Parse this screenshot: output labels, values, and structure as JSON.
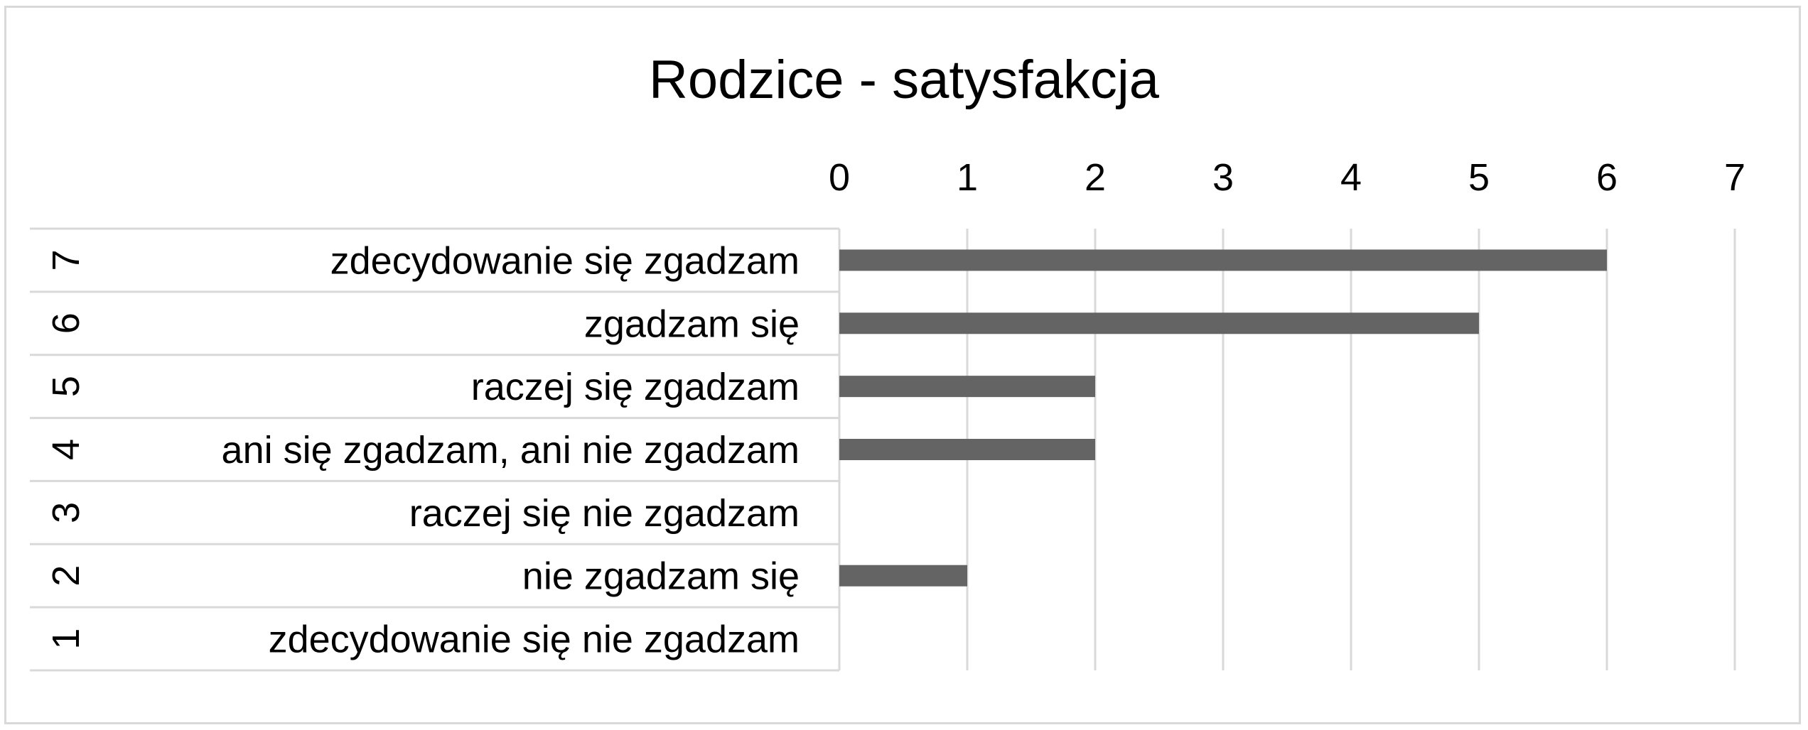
{
  "chart_data": {
    "type": "bar",
    "orientation": "horizontal",
    "title": "Rodzice - satysfakcja",
    "categories": [
      {
        "code": "7",
        "label": "zdecydowanie się zgadzam"
      },
      {
        "code": "6",
        "label": "zgadzam się"
      },
      {
        "code": "5",
        "label": "raczej się zgadzam"
      },
      {
        "code": "4",
        "label": "ani się zgadzam, ani nie zgadzam"
      },
      {
        "code": "3",
        "label": "raczej się nie zgadzam"
      },
      {
        "code": "2",
        "label": "nie zgadzam się"
      },
      {
        "code": "1",
        "label": "zdecydowanie się nie zgadzam"
      }
    ],
    "values": [
      6,
      5,
      2,
      2,
      0,
      1,
      0
    ],
    "xlim": [
      0,
      7
    ],
    "x_ticks": [
      "0",
      "1",
      "2",
      "3",
      "4",
      "5",
      "6",
      "7"
    ],
    "x_axis_position": "top",
    "grid": true,
    "bar_color": "#646464",
    "grid_color": "#d9d9d9"
  }
}
